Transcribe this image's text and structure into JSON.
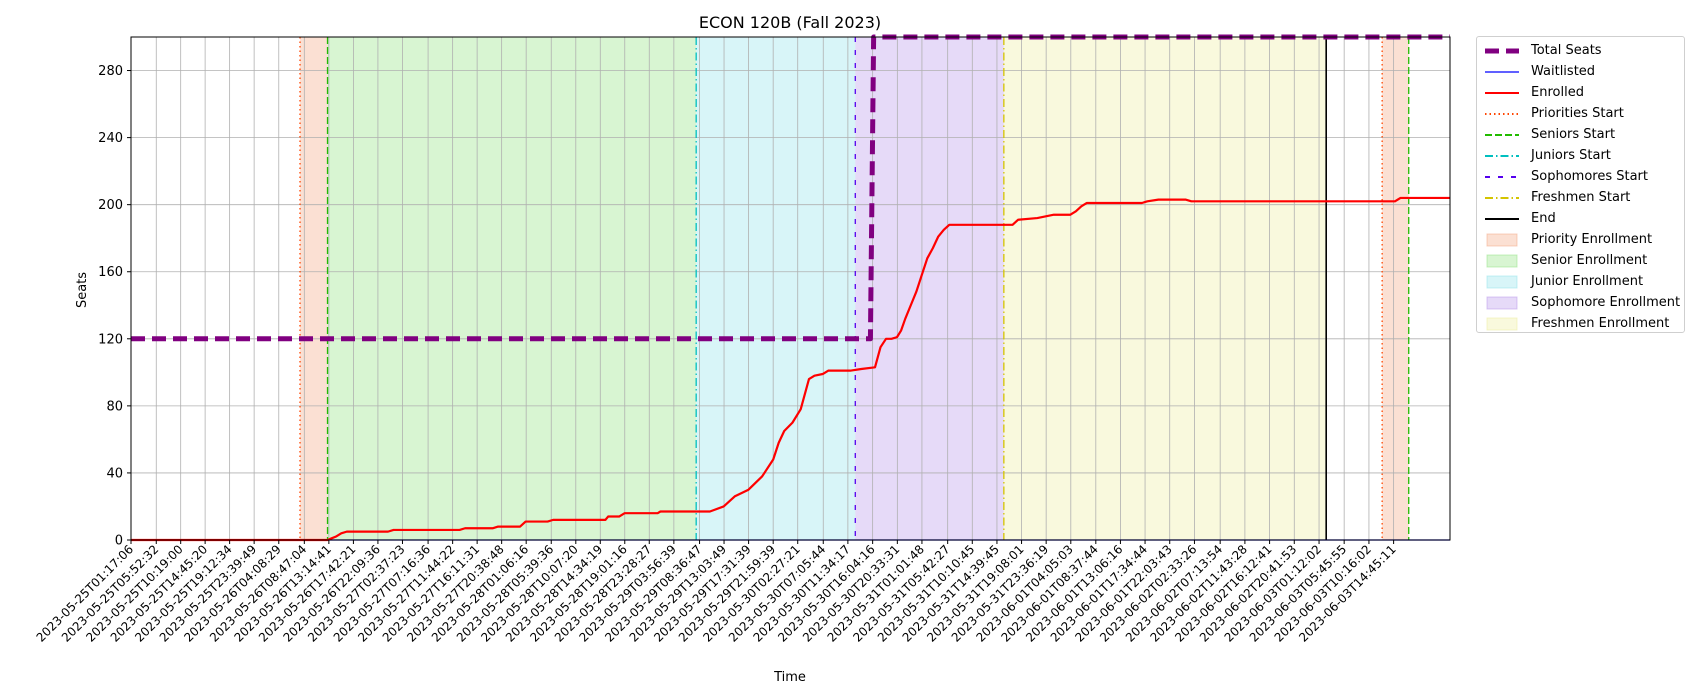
{
  "chart_data": {
    "type": "line",
    "title": "ECON 120B (Fall 2023)",
    "xlabel": "Time",
    "ylabel": "Seats",
    "ylim": [
      0,
      300
    ],
    "xlim": [
      "2023-05-25T01:17:06",
      "2023-06-04T01:00:00"
    ],
    "y_ticks": [
      0,
      40,
      80,
      120,
      160,
      200,
      240,
      280
    ],
    "grid": true,
    "legend_position": "outside-right",
    "x_ticks": [
      "2023-05-25T01:17:06",
      "2023-05-25T05:52:32",
      "2023-05-25T10:19:00",
      "2023-05-25T14:45:20",
      "2023-05-25T19:12:34",
      "2023-05-25T23:39:49",
      "2023-05-26T04:08:29",
      "2023-05-26T08:47:04",
      "2023-05-26T13:14:41",
      "2023-05-26T17:42:21",
      "2023-05-26T22:09:36",
      "2023-05-27T02:37:23",
      "2023-05-27T07:16:36",
      "2023-05-27T11:44:22",
      "2023-05-27T16:11:31",
      "2023-05-27T20:38:48",
      "2023-05-28T01:06:16",
      "2023-05-28T05:39:36",
      "2023-05-28T10:07:20",
      "2023-05-28T14:34:19",
      "2023-05-28T19:01:16",
      "2023-05-28T23:28:27",
      "2023-05-29T03:56:39",
      "2023-05-29T08:36:47",
      "2023-05-29T13:03:49",
      "2023-05-29T17:31:39",
      "2023-05-29T21:59:39",
      "2023-05-30T02:27:21",
      "2023-05-30T07:05:44",
      "2023-05-30T11:34:17",
      "2023-05-30T16:04:16",
      "2023-05-30T20:33:31",
      "2023-05-31T01:01:48",
      "2023-05-31T05:42:27",
      "2023-05-31T10:10:45",
      "2023-05-31T14:39:45",
      "2023-05-31T19:08:01",
      "2023-05-31T23:36:19",
      "2023-06-01T04:05:03",
      "2023-06-01T08:37:44",
      "2023-06-01T13:06:16",
      "2023-06-01T17:34:44",
      "2023-06-01T22:03:43",
      "2023-06-02T02:33:26",
      "2023-06-02T07:13:54",
      "2023-06-02T11:43:28",
      "2023-06-02T16:12:41",
      "2023-06-02T20:41:53",
      "2023-06-03T01:12:02",
      "2023-06-03T05:45:55",
      "2023-06-03T10:16:02",
      "2023-06-03T14:45:11"
    ],
    "series": [
      {
        "name": "Total Seats",
        "color": "#800080",
        "style": "dashed-thick",
        "points": [
          [
            "2023-05-25T01:17:06",
            120
          ],
          [
            "2023-05-30T15:40:00",
            120
          ],
          [
            "2023-05-30T16:15:00",
            300
          ],
          [
            "2023-06-04T01:00:00",
            300
          ]
        ]
      },
      {
        "name": "Waitlisted",
        "color": "#0000ff",
        "style": "solid-thin",
        "points": [
          [
            "2023-05-25T01:17:06",
            0
          ],
          [
            "2023-06-04T01:00:00",
            0
          ]
        ]
      },
      {
        "name": "Enrolled",
        "color": "#ff0000",
        "style": "solid",
        "points": [
          [
            "2023-05-25T01:17:06",
            0
          ],
          [
            "2023-05-26T13:00:00",
            0
          ],
          [
            "2023-05-26T13:45:00",
            1
          ],
          [
            "2023-05-26T14:30:00",
            2
          ],
          [
            "2023-05-26T15:30:00",
            4
          ],
          [
            "2023-05-26T16:30:00",
            5
          ],
          [
            "2023-05-27T00:00:00",
            5
          ],
          [
            "2023-05-27T01:00:00",
            6
          ],
          [
            "2023-05-27T13:00:00",
            6
          ],
          [
            "2023-05-27T14:00:00",
            7
          ],
          [
            "2023-05-27T19:00:00",
            7
          ],
          [
            "2023-05-27T20:00:00",
            8
          ],
          [
            "2023-05-28T00:00:00",
            8
          ],
          [
            "2023-05-28T01:00:00",
            11
          ],
          [
            "2023-05-28T05:00:00",
            11
          ],
          [
            "2023-05-28T06:00:00",
            12
          ],
          [
            "2023-05-28T15:30:00",
            12
          ],
          [
            "2023-05-28T16:00:00",
            14
          ],
          [
            "2023-05-28T18:00:00",
            14
          ],
          [
            "2023-05-28T19:00:00",
            16
          ],
          [
            "2023-05-29T01:00:00",
            16
          ],
          [
            "2023-05-29T01:30:00",
            17
          ],
          [
            "2023-05-29T10:30:00",
            17
          ],
          [
            "2023-05-29T13:00:00",
            20
          ],
          [
            "2023-05-29T15:00:00",
            26
          ],
          [
            "2023-05-29T17:30:00",
            30
          ],
          [
            "2023-05-29T20:00:00",
            38
          ],
          [
            "2023-05-29T22:00:00",
            48
          ],
          [
            "2023-05-29T23:00:00",
            58
          ],
          [
            "2023-05-30T00:00:00",
            65
          ],
          [
            "2023-05-30T01:30:00",
            70
          ],
          [
            "2023-05-30T03:00:00",
            78
          ],
          [
            "2023-05-30T04:30:00",
            96
          ],
          [
            "2023-05-30T05:30:00",
            98
          ],
          [
            "2023-05-30T07:00:00",
            99
          ],
          [
            "2023-05-30T08:00:00",
            101
          ],
          [
            "2023-05-30T12:00:00",
            101
          ],
          [
            "2023-05-30T14:00:00",
            102
          ],
          [
            "2023-05-30T16:30:00",
            103
          ],
          [
            "2023-05-30T17:30:00",
            115
          ],
          [
            "2023-05-30T18:30:00",
            120
          ],
          [
            "2023-05-30T19:30:00",
            120
          ],
          [
            "2023-05-30T20:30:00",
            121
          ],
          [
            "2023-05-30T21:15:00",
            125
          ],
          [
            "2023-05-30T22:00:00",
            132
          ],
          [
            "2023-05-30T23:00:00",
            140
          ],
          [
            "2023-05-31T00:00:00",
            148
          ],
          [
            "2023-05-31T01:00:00",
            158
          ],
          [
            "2023-05-31T02:00:00",
            168
          ],
          [
            "2023-05-31T03:00:00",
            174
          ],
          [
            "2023-05-31T04:00:00",
            181
          ],
          [
            "2023-05-31T05:00:00",
            185
          ],
          [
            "2023-05-31T06:00:00",
            188
          ],
          [
            "2023-05-31T17:30:00",
            188
          ],
          [
            "2023-05-31T18:30:00",
            191
          ],
          [
            "2023-05-31T22:00:00",
            192
          ],
          [
            "2023-06-01T01:00:00",
            194
          ],
          [
            "2023-06-01T04:00:00",
            194
          ],
          [
            "2023-06-01T05:00:00",
            196
          ],
          [
            "2023-06-01T06:00:00",
            199
          ],
          [
            "2023-06-01T07:00:00",
            201
          ],
          [
            "2023-06-01T17:00:00",
            201
          ],
          [
            "2023-06-01T18:00:00",
            202
          ],
          [
            "2023-06-01T20:00:00",
            203
          ],
          [
            "2023-06-02T01:00:00",
            203
          ],
          [
            "2023-06-02T02:00:00",
            202
          ],
          [
            "2023-06-03T13:00:00",
            202
          ],
          [
            "2023-06-03T15:00:00",
            202
          ],
          [
            "2023-06-03T16:00:00",
            204
          ],
          [
            "2023-06-04T01:00:00",
            204
          ]
        ]
      }
    ],
    "markers": [
      {
        "name": "Priorities Start",
        "color": "#ff4500",
        "style": "dotted",
        "x": [
          "2023-05-26T08:00:00",
          "2023-06-03T12:40:00"
        ]
      },
      {
        "name": "Seniors Start",
        "color": "#22bb00",
        "style": "dashed",
        "x": [
          "2023-05-26T13:00:00",
          "2023-06-03T17:30:00"
        ]
      },
      {
        "name": "Juniors Start",
        "color": "#00bfbf",
        "style": "dashdot",
        "x": [
          "2023-05-29T08:00:00"
        ]
      },
      {
        "name": "Sophomores Start",
        "color": "#5500ee",
        "style": "loosedash",
        "x": [
          "2023-05-30T12:55:00"
        ]
      },
      {
        "name": "Freshmen Start",
        "color": "#d4c400",
        "style": "dashdot",
        "x": [
          "2023-05-31T15:55:00"
        ]
      },
      {
        "name": "End",
        "color": "#000000",
        "style": "solid",
        "x": [
          "2023-06-03T02:30:00"
        ]
      }
    ],
    "regions": [
      {
        "name": "Priority Enrollment",
        "color": "#f4a582",
        "start": "2023-05-26T08:00:00",
        "end": "2023-05-26T13:00:00"
      },
      {
        "name": "Priority Enrollment",
        "color": "#f4a582",
        "start": "2023-06-03T12:40:00",
        "end": "2023-06-03T17:30:00",
        "legend": false
      },
      {
        "name": "Senior Enrollment",
        "color": "#90e27f",
        "start": "2023-05-26T13:00:00",
        "end": "2023-05-29T08:00:00"
      },
      {
        "name": "Junior Enrollment",
        "color": "#8fe3ea",
        "start": "2023-05-29T08:00:00",
        "end": "2023-05-30T12:55:00"
      },
      {
        "name": "Sophomore Enrollment",
        "color": "#b894ea",
        "start": "2023-05-30T12:55:00",
        "end": "2023-05-31T15:55:00"
      },
      {
        "name": "Freshmen Enrollment",
        "color": "#eeee9d",
        "start": "2023-05-31T15:55:00",
        "end": "2023-06-03T02:30:00"
      }
    ],
    "legend": [
      "Total Seats",
      "Waitlisted",
      "Enrolled",
      "Priorities Start",
      "Seniors Start",
      "Juniors Start",
      "Sophomores Start",
      "Freshmen Start",
      "End",
      "Priority Enrollment",
      "Senior Enrollment",
      "Junior Enrollment",
      "Sophomore Enrollment",
      "Freshmen Enrollment"
    ]
  }
}
